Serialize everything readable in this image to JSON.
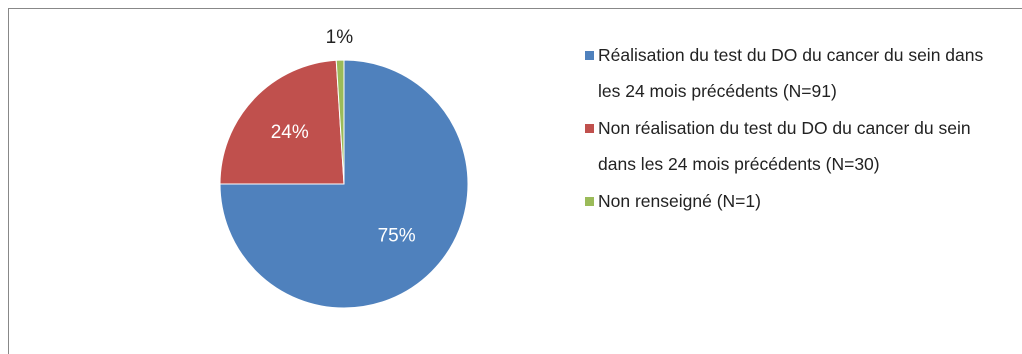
{
  "chart_data": {
    "type": "pie",
    "categories": [
      "Réalisation du test du DO du cancer du sein dans les 24 mois précédents (N=91)",
      "Non réalisation du test du DO du cancer du sein dans les 24 mois précédents (N=30)",
      "Non renseigné (N=1)"
    ],
    "values": [
      75,
      24,
      1
    ],
    "value_labels": [
      "75%",
      "24%",
      "1%"
    ],
    "colors": [
      "#4f81bd",
      "#c0504d",
      "#9bbb59"
    ],
    "legend": "right"
  }
}
